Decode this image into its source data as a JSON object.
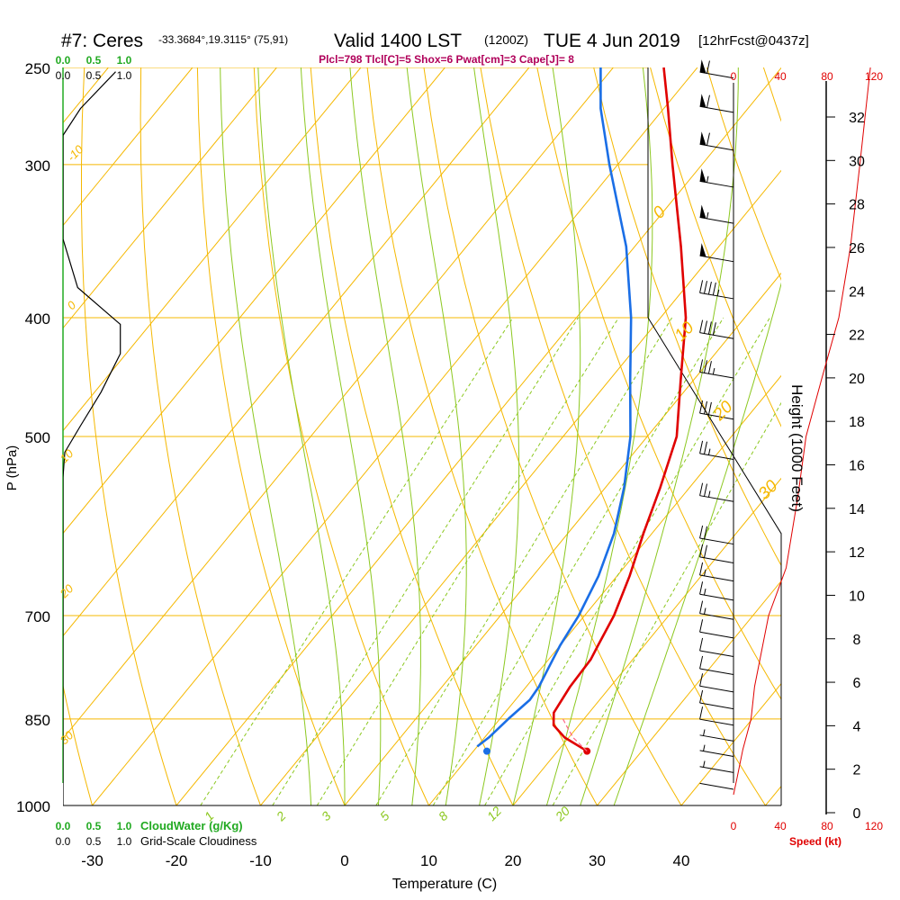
{
  "header": {
    "station": "#7: Ceres",
    "coords": "-33.3684°,19.3115° (75,91)",
    "valid": "Valid 1400 LST",
    "utc": "(1200Z)",
    "date": "TUE 4 Jun 2019",
    "forecast": "[12hrFcst@0437z]",
    "indices": "Plcl=798 Tlcl[C]=5 Shox=6 Pwat[cm]=3 Cape[J]= 8"
  },
  "colors": {
    "isotherm": "#f5b800",
    "dry_adiabat": "#f5b800",
    "moist_adiabat": "#8cc820",
    "mixing_ratio": "#8cc820",
    "temperature": "#e00000",
    "dewpoint": "#1a6ee6",
    "cloud": "#000000",
    "wind_speed": "#e00000",
    "green_label": "#22aa22",
    "indices_text": "#b0005a"
  },
  "chart_data": {
    "type": "line",
    "title": "Skew-T log-P sounding",
    "xlabel": "Temperature (C)",
    "ylabel": "P (hPa)",
    "y2label": "Height (1000 Feet)",
    "x_ticks": [
      -30,
      -20,
      -10,
      0,
      10,
      20,
      30,
      40
    ],
    "p_ticks": [
      250,
      300,
      400,
      500,
      700,
      850,
      1000
    ],
    "height_ticks": [
      0,
      2,
      4,
      6,
      8,
      10,
      12,
      14,
      16,
      18,
      20,
      22,
      24,
      26,
      28,
      30,
      32
    ],
    "speed_ticks": [
      0,
      40,
      80,
      120
    ],
    "speed_label": "Speed (kt)",
    "dry_adiabat_labels": [
      "-10",
      "0",
      "10",
      "20",
      "30",
      "0",
      "10",
      "20",
      "30"
    ],
    "mixing_ratio_labels": [
      "1",
      "2",
      "3",
      "5",
      "8",
      "12",
      "20"
    ],
    "cloud_top_ticks": [
      "0.0",
      "0.5",
      "1.0"
    ],
    "cloud_water_ticks": [
      "0.0",
      "0.5",
      "1.0"
    ],
    "cloud_labels": {
      "cloud_water": "CloudWater (g/Kg)",
      "cloudiness": "Grid-Scale Cloudiness"
    },
    "series": [
      {
        "name": "Temperature",
        "points": [
          [
            900,
            23.0
          ],
          [
            880,
            19.5
          ],
          [
            860,
            17.0
          ],
          [
            840,
            15.8
          ],
          [
            800,
            15.2
          ],
          [
            760,
            15.0
          ],
          [
            740,
            14.5
          ],
          [
            700,
            13.5
          ],
          [
            650,
            11.5
          ],
          [
            600,
            9.0
          ],
          [
            550,
            6.5
          ],
          [
            500,
            3.5
          ],
          [
            450,
            -1.5
          ],
          [
            400,
            -7.0
          ],
          [
            350,
            -14.5
          ],
          [
            300,
            -23.5
          ],
          [
            270,
            -29.5
          ],
          [
            250,
            -34.0
          ]
        ],
        "surface": [
          903,
          23.5
        ]
      },
      {
        "name": "Dewpoint",
        "points": [
          [
            895,
            10.0
          ],
          [
            880,
            10.5
          ],
          [
            850,
            11.0
          ],
          [
            820,
            11.7
          ],
          [
            800,
            11.5
          ],
          [
            760,
            10.5
          ],
          [
            740,
            10.0
          ],
          [
            700,
            9.3
          ],
          [
            650,
            7.8
          ],
          [
            600,
            5.5
          ],
          [
            550,
            2.2
          ],
          [
            500,
            -2.0
          ],
          [
            450,
            -7.5
          ],
          [
            400,
            -13.5
          ],
          [
            350,
            -21.0
          ],
          [
            300,
            -31.0
          ],
          [
            270,
            -37.5
          ],
          [
            250,
            -41.5
          ]
        ],
        "surface": [
          903,
          11.6
        ]
      }
    ],
    "cloud_profile": [
      [
        1000,
        0.0
      ],
      [
        540,
        0.0
      ],
      [
        515,
        0.03
      ],
      [
        490,
        0.3
      ],
      [
        460,
        0.65
      ],
      [
        428,
        0.98
      ],
      [
        405,
        0.98
      ],
      [
        378,
        0.25
      ],
      [
        345,
        0.0
      ],
      [
        284,
        0.0
      ],
      [
        270,
        0.3
      ],
      [
        252,
        0.9
      ]
    ],
    "wind_speed_profile": [
      [
        980,
        0
      ],
      [
        950,
        3
      ],
      [
        900,
        8
      ],
      [
        850,
        15
      ],
      [
        800,
        18
      ],
      [
        700,
        30
      ],
      [
        640,
        45
      ],
      [
        560,
        55
      ],
      [
        500,
        62
      ],
      [
        450,
        75
      ],
      [
        400,
        90
      ],
      [
        350,
        100
      ],
      [
        300,
        108
      ],
      [
        250,
        117
      ]
    ],
    "wind_barbs": [
      {
        "p": 255,
        "kt": 60
      },
      {
        "p": 272,
        "kt": 60
      },
      {
        "p": 292,
        "kt": 60
      },
      {
        "p": 313,
        "kt": 55
      },
      {
        "p": 335,
        "kt": 55
      },
      {
        "p": 360,
        "kt": 50
      },
      {
        "p": 386,
        "kt": 45
      },
      {
        "p": 416,
        "kt": 40
      },
      {
        "p": 448,
        "kt": 35
      },
      {
        "p": 484,
        "kt": 30
      },
      {
        "p": 522,
        "kt": 25
      },
      {
        "p": 565,
        "kt": 25
      },
      {
        "p": 612,
        "kt": 20
      },
      {
        "p": 634,
        "kt": 20
      },
      {
        "p": 656,
        "kt": 15
      },
      {
        "p": 680,
        "kt": 15
      },
      {
        "p": 705,
        "kt": 15
      },
      {
        "p": 730,
        "kt": 10
      },
      {
        "p": 756,
        "kt": 10
      },
      {
        "p": 782,
        "kt": 10
      },
      {
        "p": 808,
        "kt": 10
      },
      {
        "p": 834,
        "kt": 10
      },
      {
        "p": 860,
        "kt": 10
      },
      {
        "p": 886,
        "kt": 5
      },
      {
        "p": 912,
        "kt": 5
      },
      {
        "p": 940,
        "kt": 5
      },
      {
        "p": 970,
        "kt": 0
      }
    ]
  }
}
